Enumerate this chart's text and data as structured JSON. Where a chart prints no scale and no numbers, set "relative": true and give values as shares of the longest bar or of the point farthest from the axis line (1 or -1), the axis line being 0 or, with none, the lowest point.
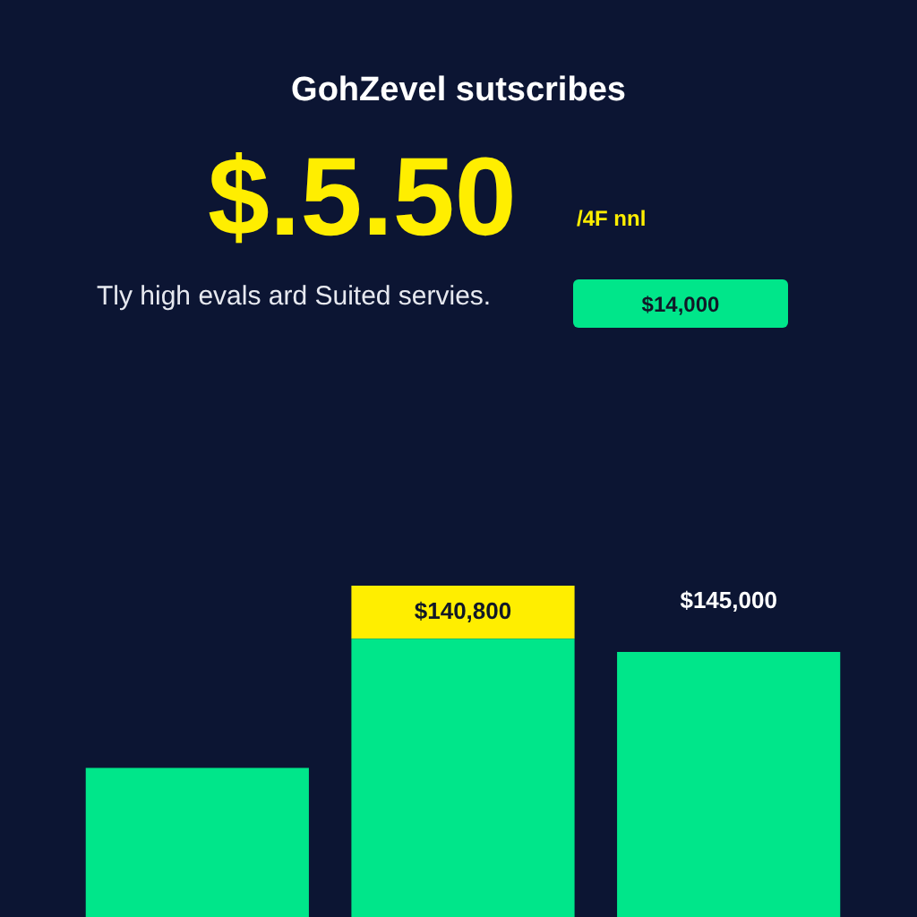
{
  "chart_data": {
    "type": "bar",
    "title": "GohZevel sutscribes",
    "annotations": [
      "$.5.50",
      "/4F nnl",
      "Tly high evals ard Suited servies.",
      "$14,000",
      "$140,800",
      "$145,000"
    ],
    "categories": [
      null,
      null,
      null
    ],
    "relative": true,
    "stacked": true,
    "series": [
      {
        "color": "#00e68a",
        "values": [
          0.45,
          0.84,
          0.8
        ]
      },
      {
        "color": "#ffee00",
        "values": [
          null,
          0.16,
          null
        ]
      }
    ]
  }
}
